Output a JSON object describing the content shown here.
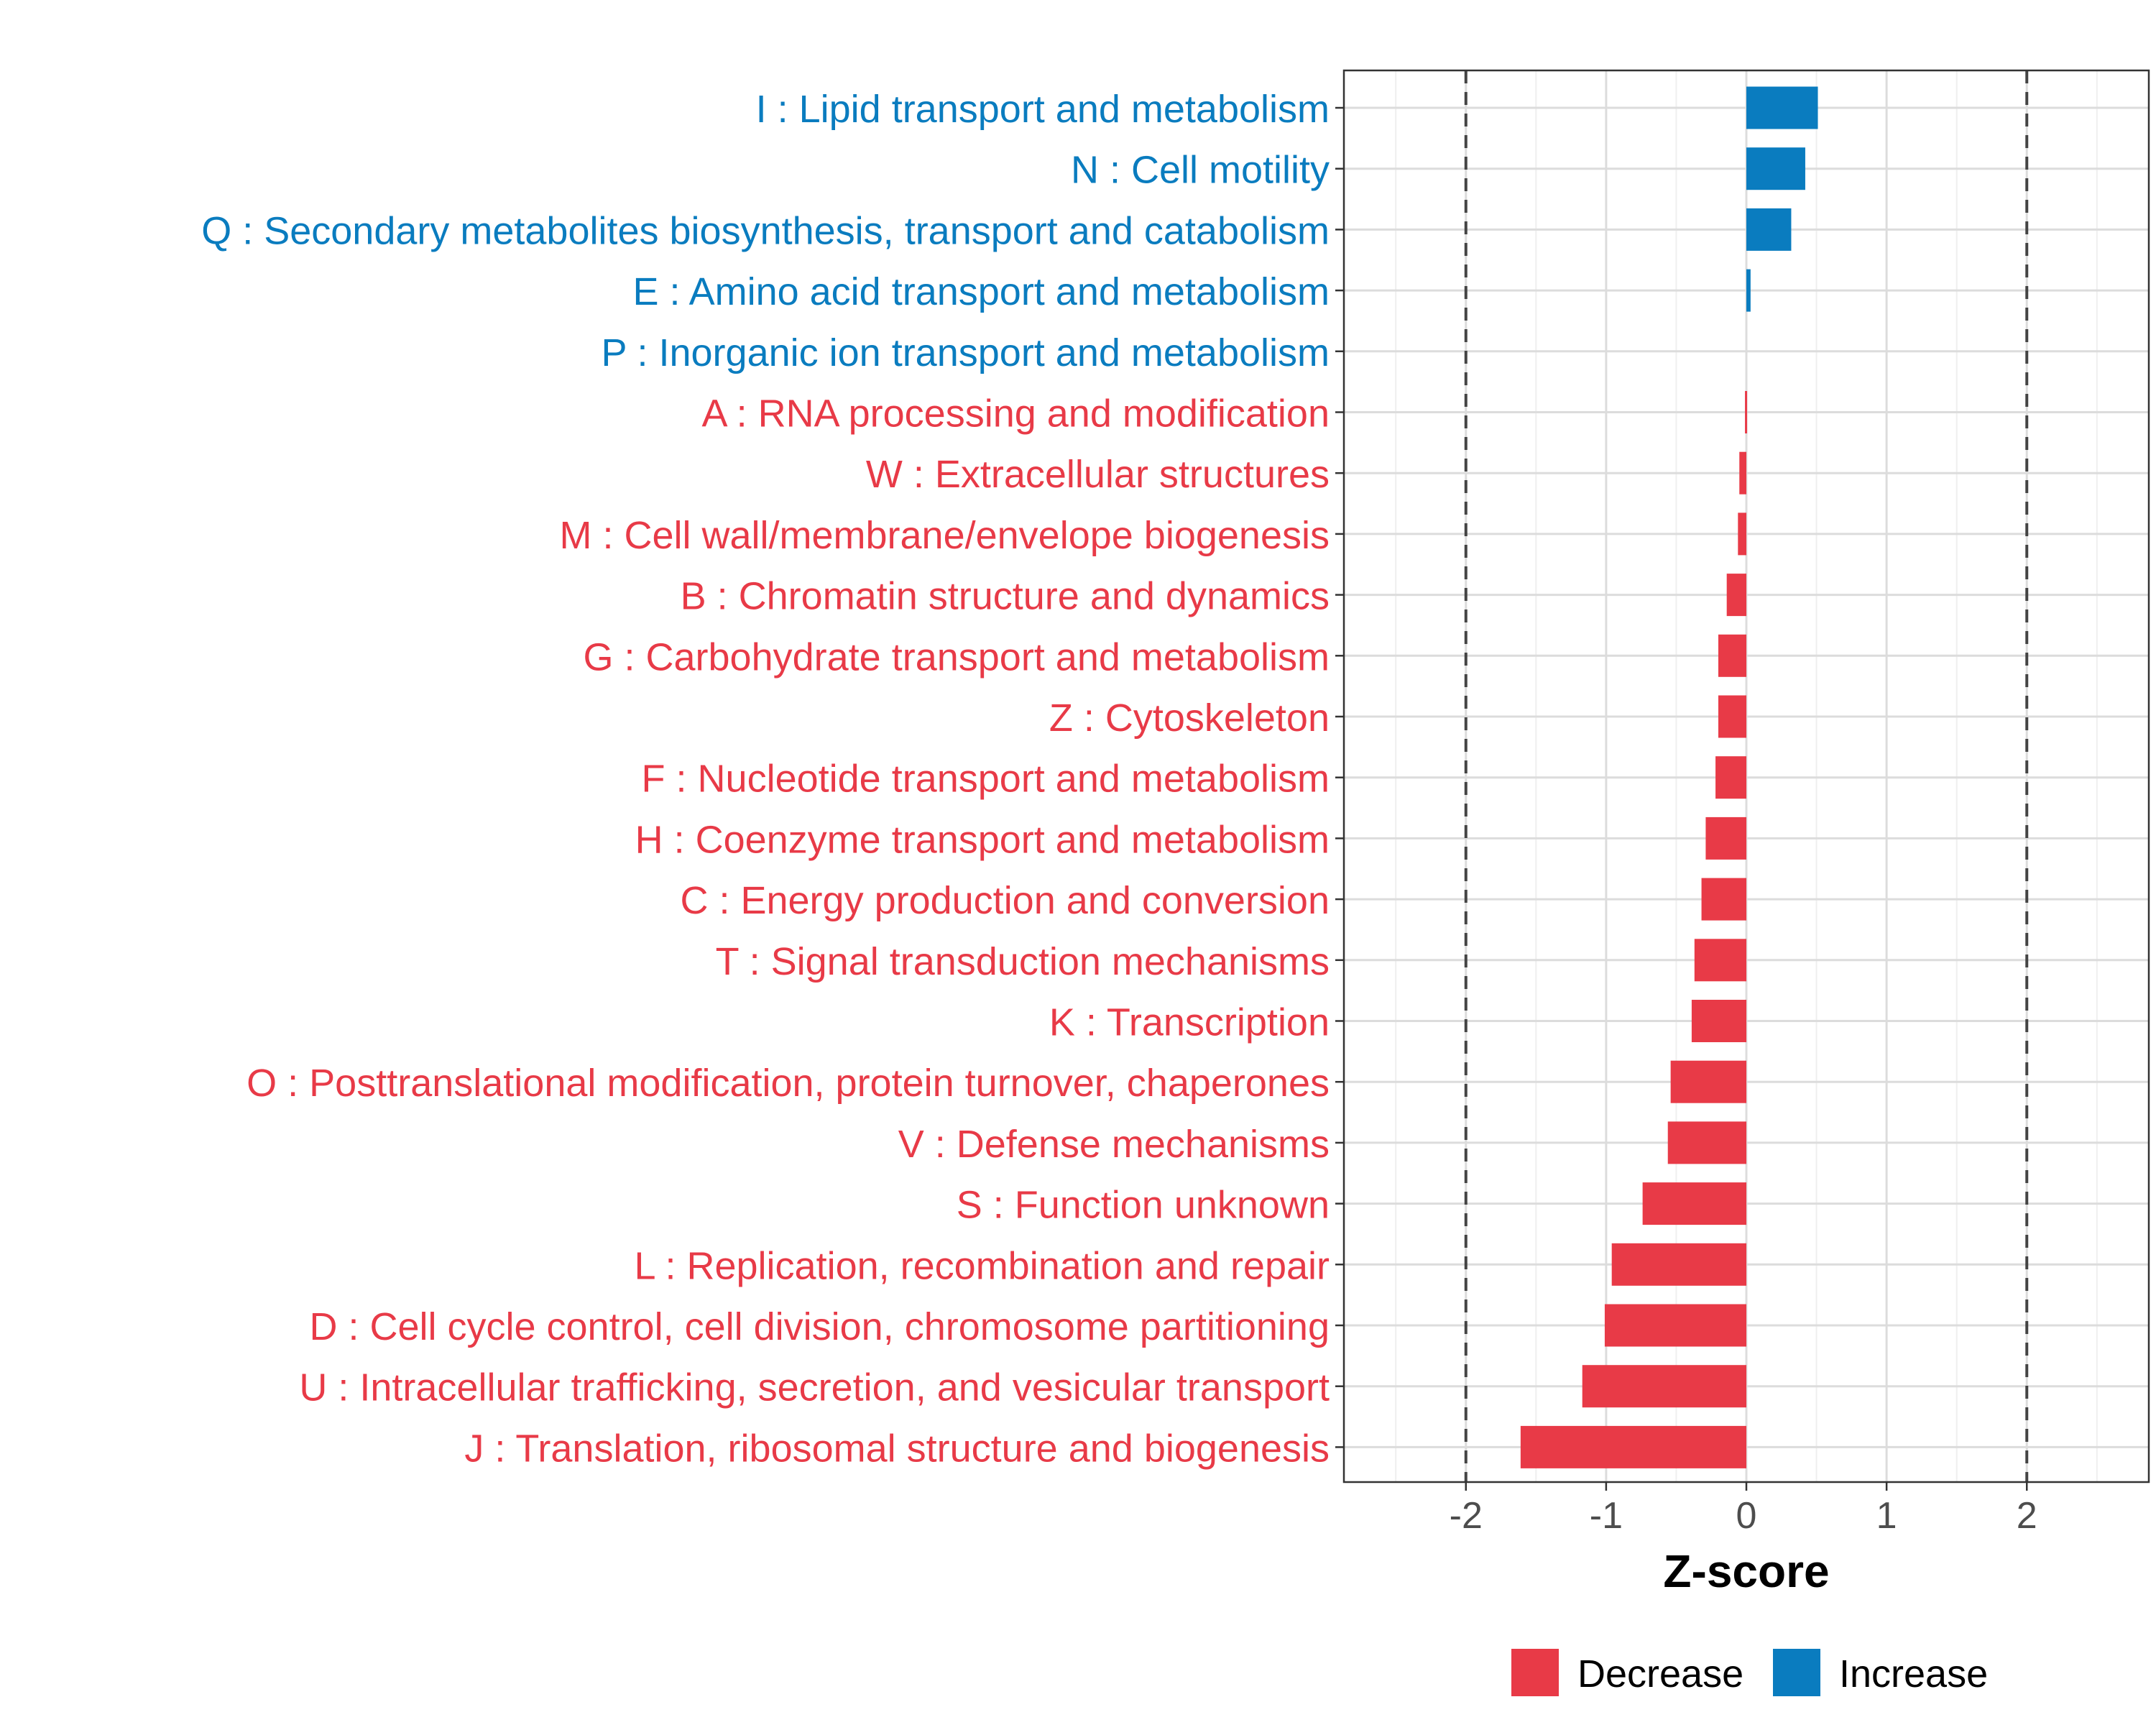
{
  "chart_data": {
    "type": "bar",
    "orientation": "horizontal",
    "xlabel": "Z-score",
    "ylabel": "",
    "xlim": [
      -2.87,
      2.87
    ],
    "x_ticks": [
      "-2",
      "-1",
      "0",
      "1",
      "2"
    ],
    "x_tick_values": [
      -2,
      -1,
      0,
      1,
      2
    ],
    "reference_lines": [
      -2,
      2
    ],
    "grid": true,
    "legend_position": "bottom",
    "colors": {
      "Decrease": "#E83A47",
      "Increase": "#0A7CBF"
    },
    "legend": [
      {
        "name": "Decrease",
        "color": "#E83A47"
      },
      {
        "name": "Increase",
        "color": "#0A7CBF"
      }
    ],
    "categories": [
      {
        "label": "I : Lipid transport and metabolism",
        "value": 0.51,
        "group": "Increase"
      },
      {
        "label": "N : Cell motility",
        "value": 0.42,
        "group": "Increase"
      },
      {
        "label": "Q : Secondary metabolites biosynthesis, transport and catabolism",
        "value": 0.32,
        "group": "Increase"
      },
      {
        "label": "E : Amino acid transport and metabolism",
        "value": 0.03,
        "group": "Increase"
      },
      {
        "label": "P : Inorganic ion transport and metabolism",
        "value": 0.0,
        "group": "Increase"
      },
      {
        "label": "A : RNA processing and modification",
        "value": -0.01,
        "group": "Decrease"
      },
      {
        "label": "W : Extracellular structures",
        "value": -0.05,
        "group": "Decrease"
      },
      {
        "label": "M : Cell wall/membrane/envelope biogenesis",
        "value": -0.06,
        "group": "Decrease"
      },
      {
        "label": "B : Chromatin structure and dynamics",
        "value": -0.14,
        "group": "Decrease"
      },
      {
        "label": "G : Carbohydrate transport and metabolism",
        "value": -0.2,
        "group": "Decrease"
      },
      {
        "label": "Z : Cytoskeleton",
        "value": -0.2,
        "group": "Decrease"
      },
      {
        "label": "F : Nucleotide transport and metabolism",
        "value": -0.22,
        "group": "Decrease"
      },
      {
        "label": "H : Coenzyme transport and metabolism",
        "value": -0.29,
        "group": "Decrease"
      },
      {
        "label": "C : Energy production and conversion",
        "value": -0.32,
        "group": "Decrease"
      },
      {
        "label": "T : Signal transduction mechanisms",
        "value": -0.37,
        "group": "Decrease"
      },
      {
        "label": "K : Transcription",
        "value": -0.39,
        "group": "Decrease"
      },
      {
        "label": "O : Posttranslational modification, protein turnover, chaperones",
        "value": -0.54,
        "group": "Decrease"
      },
      {
        "label": "V : Defense mechanisms",
        "value": -0.56,
        "group": "Decrease"
      },
      {
        "label": "S : Function unknown",
        "value": -0.74,
        "group": "Decrease"
      },
      {
        "label": "L : Replication, recombination and repair",
        "value": -0.96,
        "group": "Decrease"
      },
      {
        "label": "D : Cell cycle control, cell division, chromosome partitioning",
        "value": -1.01,
        "group": "Decrease"
      },
      {
        "label": "U : Intracellular trafficking, secretion, and vesicular transport",
        "value": -1.17,
        "group": "Decrease"
      },
      {
        "label": "J : Translation, ribosomal structure and biogenesis",
        "value": -1.61,
        "group": "Decrease"
      }
    ]
  }
}
